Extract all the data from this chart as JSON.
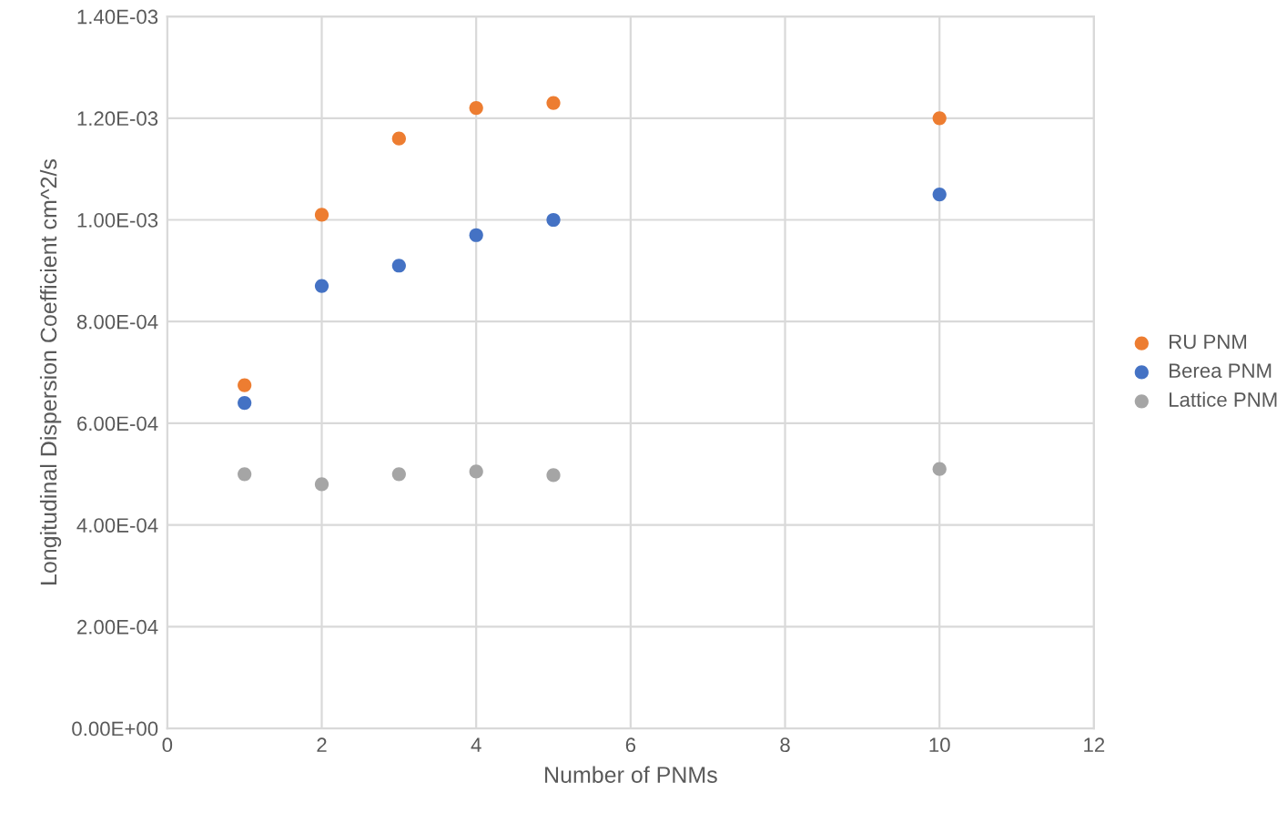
{
  "chart_data": {
    "type": "scatter",
    "xlabel": "Number of PNMs",
    "ylabel": "Longitudinal Dispersion Coefficient cm^2/s",
    "x": [
      1,
      2,
      3,
      4,
      5,
      10
    ],
    "series": [
      {
        "name": "RU PNM",
        "color": "#ed7d31",
        "values": [
          0.000675,
          0.00101,
          0.00116,
          0.00122,
          0.00123,
          0.0012
        ]
      },
      {
        "name": "Berea PNM",
        "color": "#4472c4",
        "values": [
          0.00064,
          0.00087,
          0.00091,
          0.00097,
          0.001,
          0.00105
        ]
      },
      {
        "name": "Lattice PNM",
        "color": "#a5a5a5",
        "values": [
          0.0005,
          0.00048,
          0.0005,
          0.000505,
          0.000498,
          0.00051
        ]
      }
    ],
    "xlim": [
      0,
      12
    ],
    "xticks": [
      0,
      2,
      4,
      6,
      8,
      10,
      12
    ],
    "ylim": [
      0,
      0.0014
    ],
    "yticks": [
      {
        "value": 0,
        "label": "0.00E+00"
      },
      {
        "value": 0.0002,
        "label": "2.00E-04"
      },
      {
        "value": 0.0004,
        "label": "4.00E-04"
      },
      {
        "value": 0.0006,
        "label": "6.00E-04"
      },
      {
        "value": 0.0008,
        "label": "8.00E-04"
      },
      {
        "value": 0.001,
        "label": "1.00E-03"
      },
      {
        "value": 0.0012,
        "label": "1.20E-03"
      },
      {
        "value": 0.0014,
        "label": "1.40E-03"
      }
    ],
    "grid": true,
    "legend": "right",
    "marker": "circle"
  }
}
